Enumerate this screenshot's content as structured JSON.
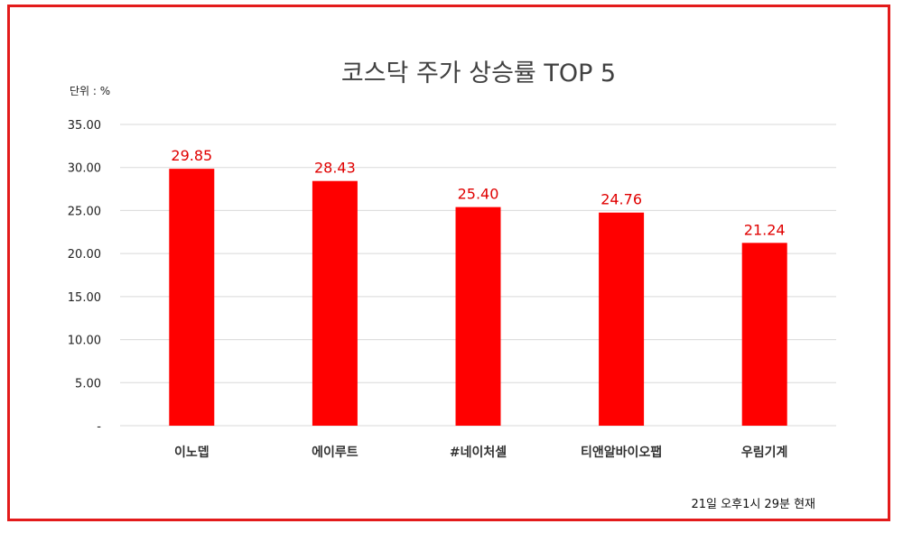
{
  "chart_data": {
    "type": "bar",
    "title": "코스닥 주가 상승률 TOP 5",
    "unit_label": "단위 : %",
    "categories": [
      "이노뎁",
      "에이루트",
      "#네이처셀",
      "티앤알바이오팹",
      "우림기계"
    ],
    "values": [
      29.85,
      28.43,
      25.4,
      24.76,
      21.24
    ],
    "value_labels": [
      "29.85",
      "28.43",
      "25.40",
      "24.76",
      "21.24"
    ],
    "ylim": [
      0,
      35
    ],
    "y_ticks": [
      0,
      5,
      10,
      15,
      20,
      25,
      30,
      35
    ],
    "y_tick_labels": [
      "-",
      "5.00",
      "10.00",
      "15.00",
      "20.00",
      "25.00",
      "30.00",
      "35.00"
    ],
    "bar_color": "#ff0000",
    "label_color": "#e00000",
    "grid": true,
    "legend": "none",
    "footnote": "21일 오후1시 29분 현재"
  },
  "frame": {
    "border_color": "#e31b1b"
  }
}
